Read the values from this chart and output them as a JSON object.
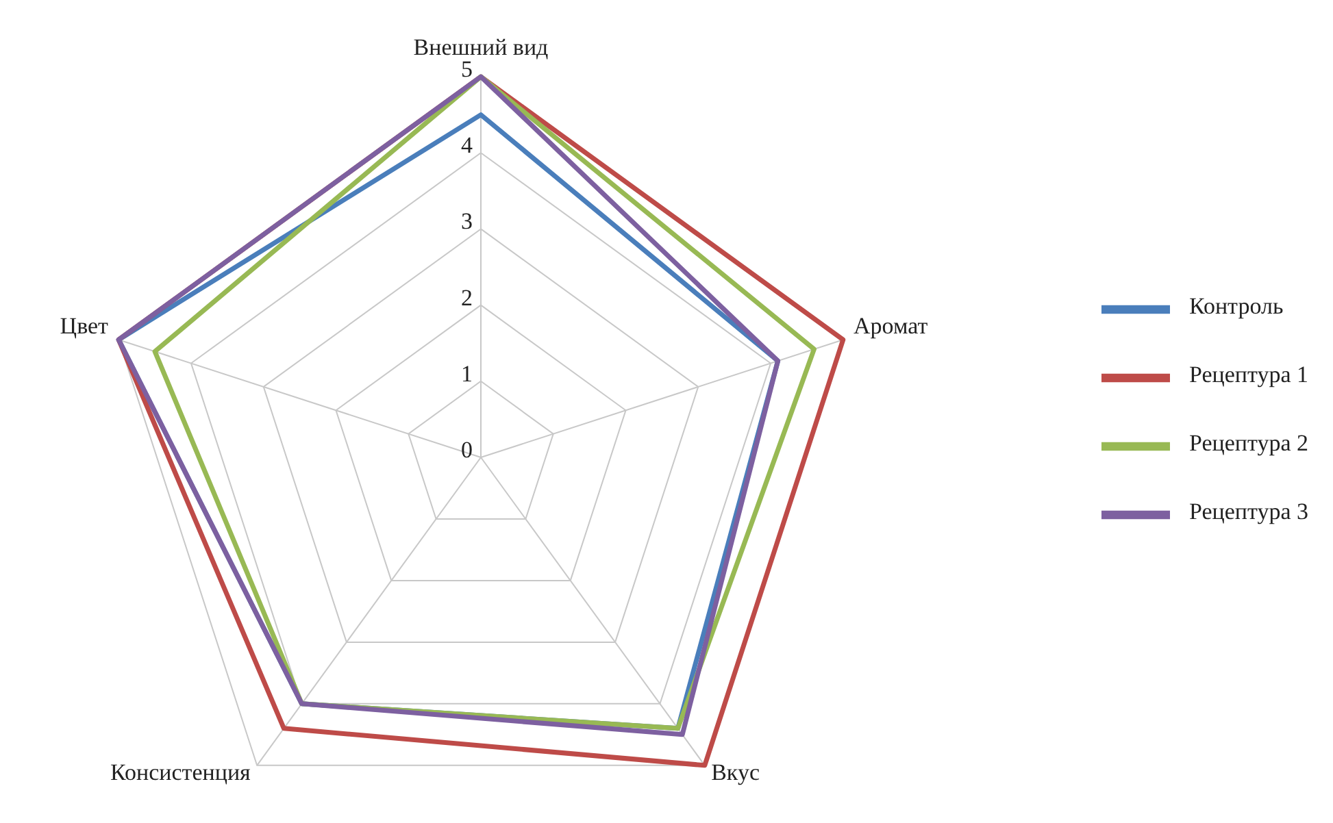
{
  "chart_data": {
    "type": "radar",
    "categories": [
      "Внешний вид",
      "Аромат",
      "Вкус",
      "Консистенция",
      "Цвет"
    ],
    "series": [
      {
        "name": "Контроль",
        "color": "#4a7ebb",
        "values": [
          4.5,
          4.1,
          4.4,
          4.0,
          5
        ]
      },
      {
        "name": "Рецептура 1",
        "color": "#be4b48",
        "values": [
          5,
          5,
          5,
          4.4,
          5
        ]
      },
      {
        "name": "Рецептура 2",
        "color": "#98b954",
        "values": [
          5,
          4.6,
          4.4,
          4.0,
          4.5
        ]
      },
      {
        "name": "Рецептура 3",
        "color": "#7d60a0",
        "values": [
          5,
          4.1,
          4.5,
          4.0,
          5
        ]
      }
    ],
    "ylim": [
      0,
      5
    ],
    "yticks": [
      0,
      1,
      2,
      3,
      4,
      5
    ],
    "grid": true,
    "legend": "right",
    "marker": "none"
  }
}
